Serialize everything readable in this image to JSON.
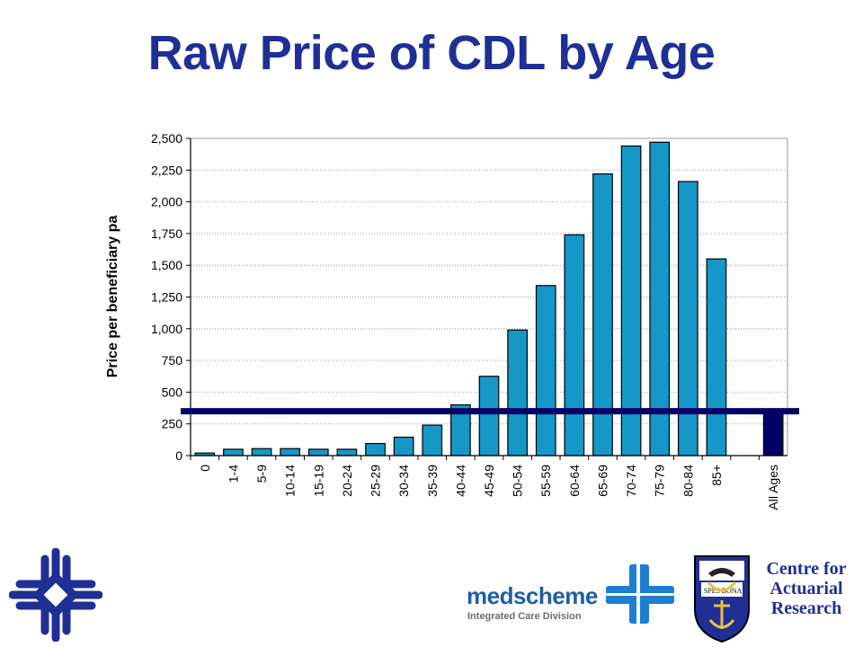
{
  "title": "Raw Price of CDL by Age",
  "chart_data": {
    "type": "bar",
    "title": "Raw Price of CDL by Age",
    "xlabel": "",
    "ylabel": "Price per beneficiary pa",
    "ylim": [
      0,
      2500
    ],
    "yticks": [
      "0",
      "250",
      "500",
      "750",
      "1,000",
      "1,250",
      "1,500",
      "1,750",
      "2,000",
      "2,250",
      "2,500"
    ],
    "ytick_values": [
      0,
      250,
      500,
      750,
      1000,
      1250,
      1500,
      1750,
      2000,
      2250,
      2500
    ],
    "grid": true,
    "categories": [
      "0",
      "1-4",
      "5-9",
      "10-14",
      "15-19",
      "20-24",
      "25-29",
      "30-34",
      "35-39",
      "40-44",
      "45-49",
      "50-54",
      "55-59",
      "60-64",
      "65-69",
      "70-74",
      "75-79",
      "80-84",
      "85+",
      "",
      "All Ages"
    ],
    "values": [
      20,
      50,
      55,
      55,
      50,
      50,
      95,
      145,
      240,
      400,
      625,
      990,
      1340,
      1740,
      2220,
      2440,
      2470,
      2160,
      1550,
      null,
      335
    ],
    "highlight_category": "All Ages",
    "reference_line": 350,
    "colors": {
      "bar": "#1597c8",
      "highlight": "#000066",
      "reference_line": "#000066",
      "grid": "#9a9a9a"
    }
  },
  "logos": {
    "car_text": [
      "Centre for",
      "Actuarial",
      "Research"
    ],
    "medscheme_word": "medscheme",
    "medscheme_sub": "Integrated Care Division",
    "left_logo_icon": "cross-knot-logo-icon",
    "medscheme_icon": "medscheme-mark-icon",
    "uct_icon": "uct-crest-icon"
  }
}
